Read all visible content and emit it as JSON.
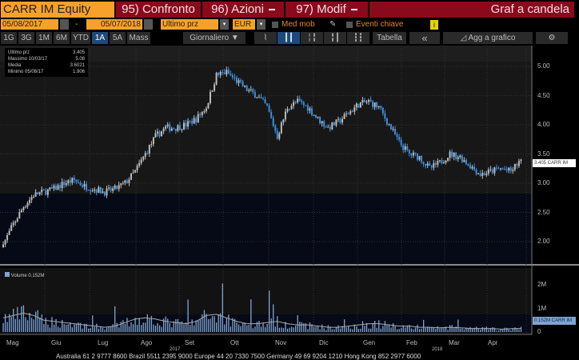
{
  "header": {
    "security": "CARR IM Equity",
    "compare": "95) Confronto",
    "actions": "96) Azioni",
    "modify": "97) Modif",
    "chart_type": "Graf a candela"
  },
  "controls": {
    "start_date": "05/08/2017",
    "dash": "-",
    "end_date": "05/07/2018",
    "field": "Ultimo prz",
    "currency": "EUR",
    "moving_avg": "Med mob",
    "key_events": "Eventi chiave",
    "info": "i"
  },
  "toolbar": {
    "periods": [
      "1G",
      "3G",
      "1M",
      "6M",
      "YTD",
      "1A",
      "5A",
      "Mass"
    ],
    "selected": "1A",
    "frequency": "Giornaliero ▼",
    "table": "Tabella",
    "collapse": "«",
    "add_to_chart": "Agg a grafico",
    "settings": "⚙"
  },
  "legend": {
    "rows": [
      {
        "label": "Ultimo prz",
        "value": "3.405"
      },
      {
        "label": "Massimo 10/03/17",
        "value": "5.08"
      },
      {
        "label": "Media",
        "value": "3.6021"
      },
      {
        "label": "Minimo 05/08/17",
        "value": "1.906"
      }
    ]
  },
  "volume_legend": "Volume 0.152M",
  "price_tag": "3.405 CARR IM",
  "volume_tag": "0.152M CARR IM",
  "footer": "Australia 61 2 9777 8600 Brazil 5511 2395 9000 Europe 44 20 7330 7500 Germany 49 69 9204 1210 Hong Kong 852 2977 6000",
  "colors": {
    "orange": "#f7a12b",
    "red": "#8a0a1c",
    "up": "#bbbbbb",
    "down": "#3a8fe0"
  },
  "chart_data": {
    "type": "candlestick",
    "price_axis": {
      "ticks": [
        "5.00",
        "4.50",
        "4.00",
        "3.50",
        "3.00",
        "2.50",
        "2.00"
      ],
      "range": [
        1.7,
        5.2
      ]
    },
    "volume_axis": {
      "ticks": [
        "2M",
        "1M",
        "0"
      ],
      "range": [
        0,
        2.6
      ]
    },
    "months": [
      "Mag",
      "Giu",
      "Lug",
      "Ago",
      "Set",
      "Ott",
      "Nov",
      "Dic",
      "Gen",
      "Feb",
      "Mar",
      "Apr"
    ],
    "years": [
      "2017",
      "2018"
    ],
    "weekly_close": [
      1.95,
      2.3,
      2.6,
      2.8,
      2.85,
      2.9,
      3.0,
      3.05,
      2.95,
      2.9,
      2.85,
      2.9,
      3.0,
      3.2,
      3.5,
      3.8,
      3.95,
      3.95,
      4.0,
      4.1,
      4.3,
      4.85,
      4.9,
      4.75,
      4.6,
      4.5,
      4.3,
      3.8,
      4.3,
      4.4,
      4.3,
      4.1,
      3.95,
      4.05,
      4.2,
      4.35,
      4.4,
      4.3,
      4.0,
      3.7,
      3.5,
      3.45,
      3.25,
      3.35,
      3.5,
      3.45,
      3.3,
      3.15,
      3.2,
      3.25,
      3.2,
      3.405
    ],
    "weekly_volume_m": [
      0.6,
      0.7,
      0.8,
      0.7,
      0.5,
      0.45,
      0.4,
      0.35,
      0.3,
      0.25,
      0.2,
      0.25,
      0.4,
      0.55,
      0.6,
      0.55,
      0.45,
      0.4,
      0.35,
      0.45,
      0.7,
      0.75,
      0.6,
      0.45,
      0.35,
      0.35,
      0.4,
      0.45,
      0.35,
      0.3,
      0.3,
      0.25,
      0.2,
      0.2,
      0.25,
      0.3,
      0.35,
      0.35,
      0.3,
      0.25,
      0.25,
      0.2,
      0.2,
      0.18,
      0.2,
      0.18,
      0.15,
      0.15,
      0.15,
      0.12,
      0.14,
      0.152
    ]
  }
}
